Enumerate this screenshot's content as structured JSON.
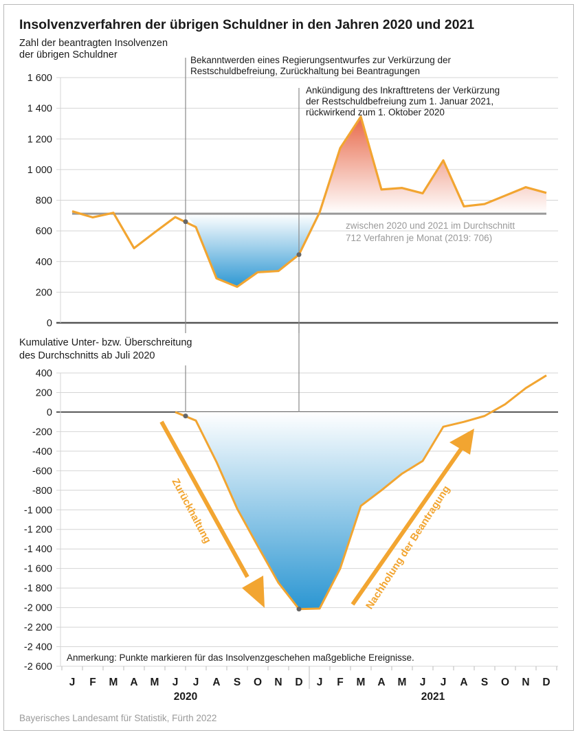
{
  "title": "Insolvenzverfahren der übrigen Schuldner in den Jahren 2020 und 2021",
  "source": "Bayerisches Landesamt für Statistik, Fürth 2022",
  "colors": {
    "line": "#f2a531",
    "below_fill": "#2b96d2",
    "above_fill": "#e8694a",
    "average_line": "#999999",
    "event_line": "#888888",
    "marker": "#666666",
    "grid": "#d4d4d4",
    "axis": "#555555"
  },
  "months": [
    "J",
    "F",
    "M",
    "A",
    "M",
    "J",
    "J",
    "A",
    "S",
    "O",
    "N",
    "D",
    "J",
    "F",
    "M",
    "A",
    "M",
    "J",
    "J",
    "A",
    "S",
    "O",
    "N",
    "D"
  ],
  "years": [
    "2020",
    "2021"
  ],
  "chart_data": [
    {
      "type": "line",
      "title": "Zahl der beantragten Insolvenzen der übrigen Schuldner",
      "ylabel_lines": [
        "Zahl der beantragten Insolvenzen",
        "der übrigen Schuldner"
      ],
      "x": [
        "2020-01",
        "2020-02",
        "2020-03",
        "2020-04",
        "2020-05",
        "2020-06",
        "2020-07",
        "2020-08",
        "2020-09",
        "2020-10",
        "2020-11",
        "2020-12",
        "2021-01",
        "2021-02",
        "2021-03",
        "2021-04",
        "2021-05",
        "2021-06",
        "2021-07",
        "2021-08",
        "2021-09",
        "2021-10",
        "2021-11",
        "2021-12"
      ],
      "values": [
        728,
        688,
        718,
        487,
        590,
        690,
        625,
        290,
        235,
        330,
        338,
        445,
        720,
        1140,
        1345,
        870,
        880,
        845,
        1060,
        760,
        775,
        830,
        885,
        848
      ],
      "average": 712,
      "ylim": [
        0,
        1600
      ],
      "yticks": [
        0,
        200,
        400,
        600,
        800,
        1000,
        1200,
        1400,
        1600
      ],
      "ytick_labels": [
        "0",
        "200",
        "400",
        "600",
        "800",
        "1 000",
        "1 200",
        "1 400",
        "1 600"
      ],
      "grid": true,
      "average_note_lines": [
        "zwischen 2020 und 2021 im Durchschnitt",
        "712 Verfahren je Monat (2019: 706)"
      ],
      "events": [
        {
          "month_index": 5.5,
          "value": 660,
          "label_lines": [
            "Bekanntwerden eines Regierungsentwurfes zur Verkürzung der",
            "Restschuldbefreiung, Zurückhaltung bei Beantragungen"
          ]
        },
        {
          "month_index": 11,
          "value": 445,
          "label_lines": [
            "Ankündigung des Inkrafttretens der Verkürzung",
            "der Restschuldbefreiung zum 1. Januar 2021,",
            "rückwirkend zum 1. Oktober 2020"
          ]
        }
      ]
    },
    {
      "type": "area",
      "title": "Kumulative Unter- bzw. Überschreitung des Durchschnitts ab Juli 2020",
      "ylabel_lines": [
        "Kumulative Unter- bzw. Überschreitung",
        "des Durchschnitts ab Juli 2020"
      ],
      "x": [
        "2020-06",
        "2020-07",
        "2020-08",
        "2020-09",
        "2020-10",
        "2020-11",
        "2020-12",
        "2021-01",
        "2021-02",
        "2021-03",
        "2021-04",
        "2021-05",
        "2021-06",
        "2021-07",
        "2021-08",
        "2021-09",
        "2021-10",
        "2021-11",
        "2021-12"
      ],
      "start_month_index": 5,
      "values": [
        0,
        -87,
        -510,
        -987,
        -1370,
        -1745,
        -2015,
        -2010,
        -1600,
        -960,
        -800,
        -630,
        -500,
        -150,
        -100,
        -40,
        80,
        245,
        375
      ],
      "ylim": [
        -2600,
        400
      ],
      "yticks": [
        400,
        200,
        0,
        -200,
        -400,
        -600,
        -800,
        -1000,
        -1200,
        -1400,
        -1600,
        -1800,
        -2000,
        -2200,
        -2400,
        -2600
      ],
      "ytick_labels": [
        "400",
        "200",
        "0",
        "-200",
        "-400",
        "-600",
        "-800",
        "-1 000",
        "-1 200",
        "-1 400",
        "-1 600",
        "-1 800",
        "-2 000",
        "-2 200",
        "-2 400",
        "-2 600"
      ],
      "grid": true,
      "events": [
        {
          "month_index": 5.5,
          "value": -40
        },
        {
          "month_index": 11,
          "value": -2015
        }
      ],
      "arrows": [
        {
          "label": "Zurückhaltung",
          "direction": "down"
        },
        {
          "label": "Nachholung der Beantragung",
          "direction": "up"
        }
      ],
      "note": "Anmerkung: Punkte markieren für das Insolvenzgeschehen maßgebliche Ereignisse."
    }
  ]
}
